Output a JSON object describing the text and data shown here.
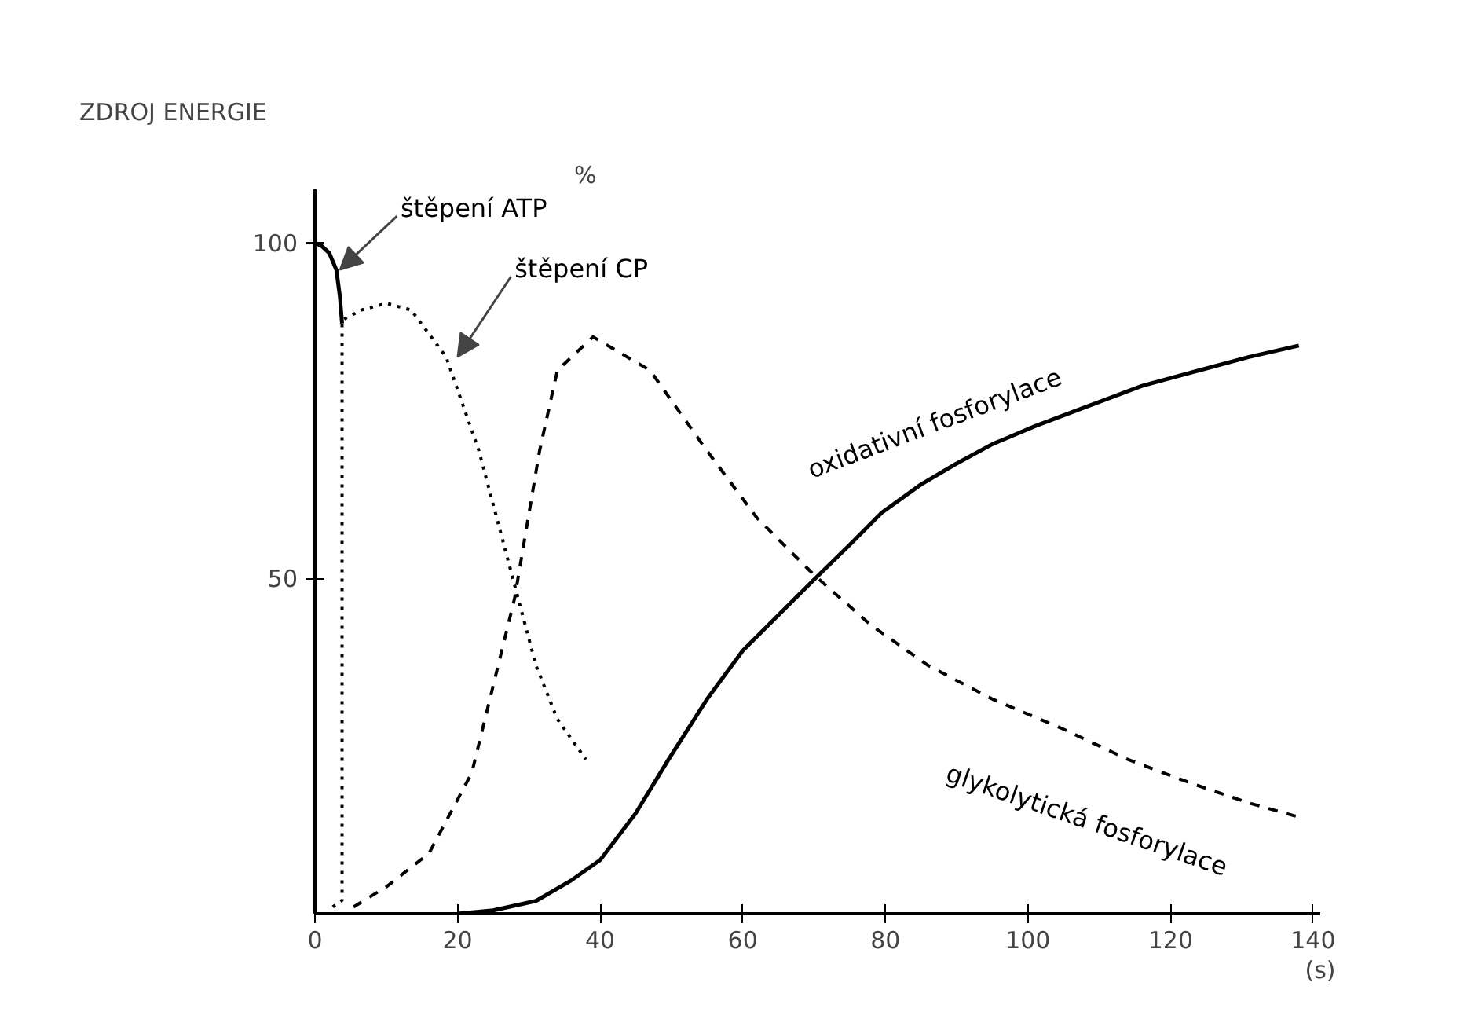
{
  "chart_data": {
    "type": "line",
    "title": "ZDROJ ENERGIE",
    "xlabel": "(s)",
    "ylabel": "%",
    "xlim": [
      0,
      141
    ],
    "ylim": [
      0,
      108
    ],
    "xticks": [
      0,
      20,
      40,
      60,
      80,
      100,
      120,
      140
    ],
    "yticks": [
      50,
      100
    ],
    "grid": false,
    "series": [
      {
        "name": "štěpení ATP",
        "color": "#000000",
        "line_style": "solid",
        "x": [
          0,
          1,
          2,
          3,
          3.5,
          3.8
        ],
        "values": [
          100,
          99.5,
          98.5,
          96,
          92,
          88
        ]
      },
      {
        "name": "štěpení CP",
        "color": "#000000",
        "line_style": "dotted",
        "x": [
          2.5,
          3.8,
          3.8,
          6.5,
          10,
          13.5,
          18.4,
          23,
          27,
          31,
          34,
          38
        ],
        "values": [
          1,
          2,
          88.5,
          90,
          91,
          90,
          83,
          69,
          53,
          37,
          29,
          23
        ]
      },
      {
        "name": "glykolytická fosforylace",
        "color": "#000000",
        "line_style": "dashed",
        "x": [
          5.4,
          10,
          16,
          22,
          28,
          31.5,
          34,
          39,
          47,
          55,
          62,
          70,
          78,
          86,
          95,
          105,
          114,
          123,
          131,
          138
        ],
        "values": [
          1,
          4,
          9,
          21,
          47,
          69,
          81,
          86,
          81,
          69,
          59,
          50.5,
          43,
          37,
          32,
          27.5,
          23,
          19.4,
          16.5,
          14.4
        ]
      },
      {
        "name": "oxidativní fosforylace",
        "color": "#000000",
        "line_style": "solid",
        "x": [
          20,
          25,
          31,
          36,
          40,
          45,
          49.6,
          55,
          60,
          65,
          69.7,
          75,
          79.5,
          85,
          89.8,
          95,
          101,
          108,
          116,
          124,
          131,
          138
        ],
        "values": [
          0,
          0.5,
          1.9,
          5,
          8,
          15,
          23,
          32,
          39.2,
          44.5,
          49.5,
          55,
          59.8,
          64,
          67,
          70,
          72.7,
          75.5,
          78.7,
          81,
          83,
          84.7
        ]
      }
    ]
  }
}
